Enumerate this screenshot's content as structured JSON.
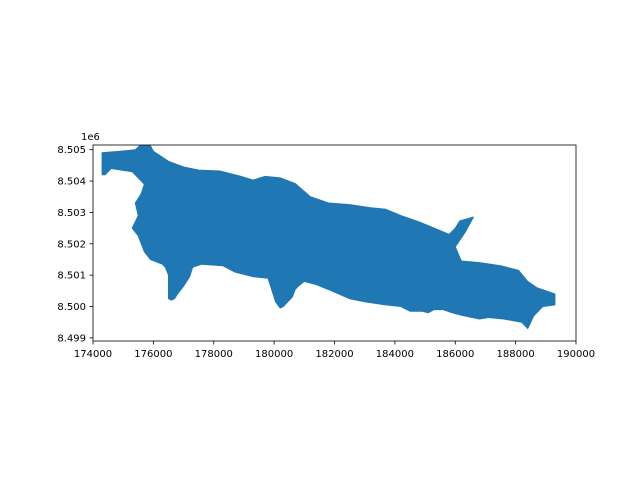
{
  "chart_data": {
    "type": "map",
    "title": "",
    "xlabel": "",
    "ylabel": "",
    "xlim": [
      174000,
      190000
    ],
    "ylim": [
      8498900,
      8505150
    ],
    "x_ticks": [
      174000,
      176000,
      178000,
      180000,
      182000,
      184000,
      186000,
      188000,
      190000
    ],
    "x_tick_labels": [
      "174000",
      "176000",
      "178000",
      "180000",
      "182000",
      "184000",
      "186000",
      "188000",
      "190000"
    ],
    "y_ticks": [
      8499000,
      8500000,
      8501000,
      8502000,
      8503000,
      8504000,
      8505000
    ],
    "y_tick_labels": [
      "8.499",
      "8.500",
      "8.501",
      "8.502",
      "8.503",
      "8.504",
      "8.505"
    ],
    "y_offset_label": "1e6",
    "grid": false,
    "legend": "none",
    "fill_color": "#1f77b4",
    "polygon": [
      [
        174300,
        8504900
      ],
      [
        174900,
        8504950
      ],
      [
        175400,
        8505000
      ],
      [
        175550,
        8505130
      ],
      [
        175900,
        8505130
      ],
      [
        176000,
        8504950
      ],
      [
        176500,
        8504630
      ],
      [
        177000,
        8504450
      ],
      [
        177500,
        8504350
      ],
      [
        178200,
        8504320
      ],
      [
        178900,
        8504150
      ],
      [
        179300,
        8504030
      ],
      [
        179700,
        8504150
      ],
      [
        180200,
        8504100
      ],
      [
        180700,
        8503920
      ],
      [
        181200,
        8503500
      ],
      [
        181800,
        8503300
      ],
      [
        182500,
        8503250
      ],
      [
        183200,
        8503150
      ],
      [
        183700,
        8503100
      ],
      [
        184200,
        8502900
      ],
      [
        184800,
        8502700
      ],
      [
        185300,
        8502500
      ],
      [
        185800,
        8502300
      ],
      [
        186000,
        8502500
      ],
      [
        186150,
        8502730
      ],
      [
        186600,
        8502850
      ],
      [
        186350,
        8502400
      ],
      [
        186000,
        8501900
      ],
      [
        186200,
        8501450
      ],
      [
        186800,
        8501400
      ],
      [
        187500,
        8501300
      ],
      [
        188100,
        8501150
      ],
      [
        188400,
        8500800
      ],
      [
        188700,
        8500600
      ],
      [
        189300,
        8500400
      ],
      [
        189300,
        8500050
      ],
      [
        188900,
        8500000
      ],
      [
        188600,
        8499700
      ],
      [
        188400,
        8499300
      ],
      [
        188200,
        8499500
      ],
      [
        187600,
        8499600
      ],
      [
        187100,
        8499650
      ],
      [
        186800,
        8499600
      ],
      [
        186300,
        8499700
      ],
      [
        185900,
        8499800
      ],
      [
        185600,
        8499900
      ],
      [
        185300,
        8499900
      ],
      [
        185100,
        8499800
      ],
      [
        184900,
        8499850
      ],
      [
        184500,
        8499850
      ],
      [
        184200,
        8500000
      ],
      [
        183700,
        8500050
      ],
      [
        183000,
        8500150
      ],
      [
        182500,
        8500250
      ],
      [
        181900,
        8500500
      ],
      [
        181400,
        8500700
      ],
      [
        181000,
        8500800
      ],
      [
        180800,
        8500650
      ],
      [
        180700,
        8500550
      ],
      [
        180600,
        8500300
      ],
      [
        180400,
        8500100
      ],
      [
        180300,
        8500000
      ],
      [
        180200,
        8499950
      ],
      [
        180050,
        8500150
      ],
      [
        179900,
        8500600
      ],
      [
        179800,
        8500900
      ],
      [
        179300,
        8500950
      ],
      [
        178700,
        8501100
      ],
      [
        178300,
        8501300
      ],
      [
        177600,
        8501350
      ],
      [
        177300,
        8501250
      ],
      [
        177200,
        8500950
      ],
      [
        177000,
        8500650
      ],
      [
        176800,
        8500400
      ],
      [
        176700,
        8500250
      ],
      [
        176600,
        8500200
      ],
      [
        176500,
        8500250
      ],
      [
        176500,
        8500700
      ],
      [
        176500,
        8501000
      ],
      [
        176400,
        8501250
      ],
      [
        176300,
        8501350
      ],
      [
        175900,
        8501500
      ],
      [
        175700,
        8501750
      ],
      [
        175500,
        8502250
      ],
      [
        175300,
        8502500
      ],
      [
        175500,
        8502900
      ],
      [
        175400,
        8503300
      ],
      [
        175600,
        8503600
      ],
      [
        175700,
        8503900
      ],
      [
        175500,
        8504100
      ],
      [
        175300,
        8504300
      ],
      [
        174600,
        8504400
      ],
      [
        174400,
        8504200
      ],
      [
        174300,
        8504200
      ]
    ]
  }
}
